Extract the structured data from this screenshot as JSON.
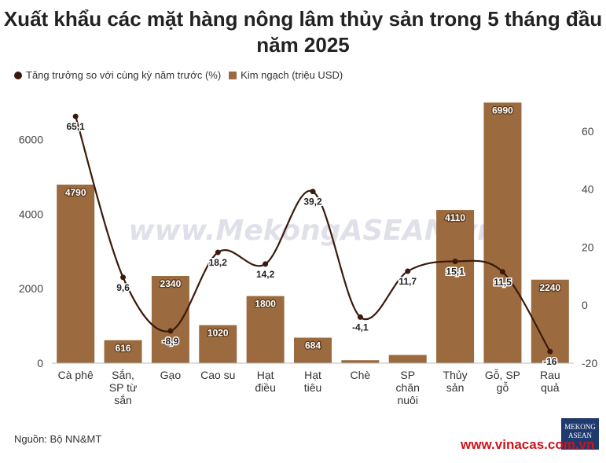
{
  "title": "Xuất khẩu các mặt hàng nông lâm thủy sản trong 5 tháng đầu năm 2025",
  "watermark": "www.MekongASEAN.vn",
  "source": "Nguồn: Bộ NN&MT",
  "logo": {
    "line1": "MEKONG",
    "line2": "ASEAN"
  },
  "site": "www.vinacas.com.vn",
  "colors": {
    "bar": "#9b6b3f",
    "line": "#3b1a0c",
    "label_bg": "#ffffff"
  },
  "chart_data": {
    "type": "bar",
    "categories": [
      "Cà phê",
      "Sắn, SP từ sắn",
      "Gạo",
      "Cao su",
      "Hạt điều",
      "Hạt tiêu",
      "Chè",
      "SP chăn nuôi",
      "Thủy sản",
      "Gỗ, SP gỗ",
      "Rau quả"
    ],
    "category_lines": [
      [
        "Cà phê"
      ],
      [
        "Sắn,",
        "SP từ",
        "sắn"
      ],
      [
        "Gạo"
      ],
      [
        "Cao su"
      ],
      [
        "Hạt",
        "điều"
      ],
      [
        "Hạt",
        "tiêu"
      ],
      [
        "Chè"
      ],
      [
        "SP",
        "chăn",
        "nuôi"
      ],
      [
        "Thủy",
        "sản"
      ],
      [
        "Gỗ, SP",
        "gỗ"
      ],
      [
        "Rau",
        "quả"
      ]
    ],
    "series": [
      {
        "name": "Kim ngạch (triệu USD)",
        "type": "bar",
        "axis": "left",
        "values": [
          4790,
          616,
          2340,
          1020,
          1800,
          684,
          80,
          220,
          4110,
          6990,
          2240
        ],
        "labels": [
          "4790",
          "616",
          "2340",
          "1020",
          "1800",
          "684",
          "",
          "",
          "4110",
          "6990",
          "2240"
        ]
      },
      {
        "name": "Tăng trưởng so với cùng kỳ năm trước (%)",
        "type": "line",
        "axis": "right",
        "values": [
          65.1,
          9.6,
          -8.9,
          18.2,
          14.2,
          39.2,
          -4.1,
          11.7,
          15.1,
          11.5,
          -16
        ],
        "labels": [
          "65,1",
          "9,6",
          "-8,9",
          "18,2",
          "14,2",
          "39,2",
          "-4,1",
          "11,7",
          "15,1",
          "11,5",
          "-16"
        ]
      }
    ],
    "y_left": {
      "ticks": [
        "0",
        "2000",
        "4000",
        "6000"
      ],
      "tick_values": [
        0,
        2000,
        4000,
        6000
      ],
      "range": [
        0,
        7000
      ]
    },
    "y_right": {
      "ticks": [
        "-20",
        "0",
        "20",
        "40",
        "60"
      ],
      "tick_values": [
        -20,
        0,
        20,
        40,
        60
      ],
      "range": [
        -20,
        70
      ]
    },
    "legend_position": "top-left",
    "grid": false
  }
}
